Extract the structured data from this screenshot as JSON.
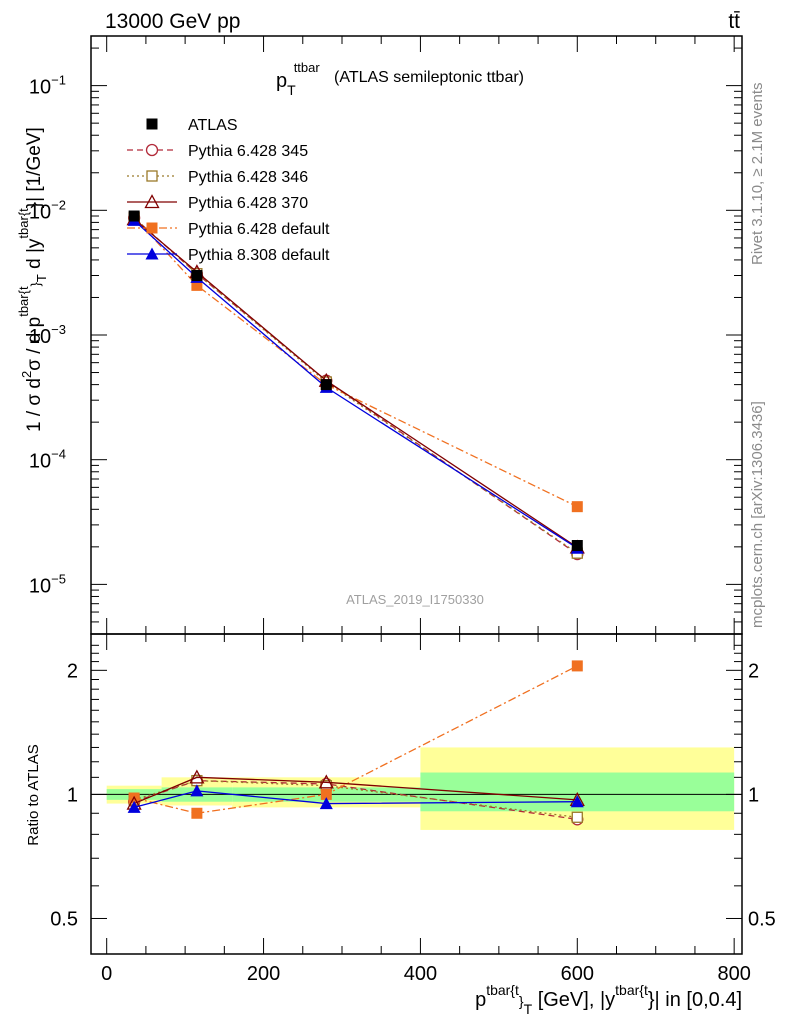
{
  "header": {
    "left": "13000 GeV pp",
    "right": "tt̄"
  },
  "side_labels": {
    "rivet": "Rivet 3.1.10, ≥ 2.1M events",
    "mcplots": "mcplots.cern.ch [arXiv:1306.3436]"
  },
  "chart_data": [
    {
      "type": "line",
      "panel": "main",
      "title_main": "p",
      "title_sub": "T",
      "title_sup": "ttbar",
      "title_rest": "(ATLAS semileptonic ttbar)",
      "watermark": "ATLAS_2019_I1750330",
      "ylabel": "1 / σ d²σ / d p^{tbar{t}}_T d |y^{tbar{t}}| [1/GeV]",
      "yscale": "log",
      "ylim": [
        4e-06,
        0.25
      ],
      "xlim": [
        -20,
        810
      ],
      "y_ticks": [
        {
          "value": 0.1,
          "base": "10",
          "exp": "−1"
        },
        {
          "value": 0.01,
          "base": "10",
          "exp": "−2"
        },
        {
          "value": 0.001,
          "base": "10",
          "exp": "−3"
        },
        {
          "value": 0.0001,
          "base": "10",
          "exp": "−4"
        },
        {
          "value": 1e-05,
          "base": "10",
          "exp": "−5"
        }
      ],
      "x": [
        35,
        115,
        280,
        600
      ],
      "series": [
        {
          "name": "ATLAS",
          "color": "#000000",
          "marker": "square-filled",
          "dash": "none",
          "values": [
            0.009,
            0.003,
            0.0004,
            2.05e-05
          ]
        },
        {
          "name": "Pythia 6.428 345",
          "color": "#b22a3a",
          "marker": "circle-open",
          "dash": "dashed",
          "values": [
            0.0087,
            0.0031,
            0.00043,
            1.75e-05
          ]
        },
        {
          "name": "Pythia 6.428 346",
          "color": "#9a7a2a",
          "marker": "square-open",
          "dash": "dotted",
          "values": [
            0.0087,
            0.0031,
            0.00042,
            1.78e-05
          ]
        },
        {
          "name": "Pythia 6.428 370",
          "color": "#800000",
          "marker": "triangle-open",
          "dash": "solid",
          "values": [
            0.0085,
            0.0032,
            0.00043,
            1.98e-05
          ]
        },
        {
          "name": "Pythia 6.428 default",
          "color": "#f07020",
          "marker": "square-filled",
          "dash": "dashdot",
          "values": [
            0.0088,
            0.0025,
            0.0004,
            4.2e-05
          ]
        },
        {
          "name": "Pythia 8.308 default",
          "color": "#0000dd",
          "marker": "triangle-filled",
          "dash": "solid",
          "values": [
            0.0083,
            0.0029,
            0.00038,
            1.95e-05
          ]
        }
      ]
    },
    {
      "type": "line",
      "panel": "ratio",
      "ylabel": "Ratio to ATLAS",
      "xlabel": "p^{tbar{t}}_T [GeV], |y^{tbar{t}}| in [0,0.4]",
      "yscale": "log",
      "ylim": [
        0.41,
        2.45
      ],
      "xlim": [
        -20,
        810
      ],
      "y_ticks": [
        0.5,
        1,
        2
      ],
      "y_tick_labels": [
        "0.5",
        "1",
        "2"
      ],
      "x_ticks": [
        0,
        200,
        400,
        600,
        800
      ],
      "x_tick_labels": [
        "0",
        "200",
        "400",
        "600",
        "800"
      ],
      "bins": [
        [
          0,
          70
        ],
        [
          70,
          160
        ],
        [
          160,
          400
        ],
        [
          400,
          800
        ]
      ],
      "band_inner": [
        [
          0.97,
          1.03
        ],
        [
          0.96,
          1.04
        ],
        [
          0.96,
          1.04
        ],
        [
          0.91,
          1.13
        ]
      ],
      "band_outer": [
        [
          0.95,
          1.05
        ],
        [
          0.94,
          1.1
        ],
        [
          0.93,
          1.1
        ],
        [
          0.82,
          1.3
        ]
      ],
      "x": [
        35,
        115,
        280,
        600
      ],
      "series": [
        {
          "name": "Pythia 6.428 345",
          "values": [
            0.96,
            1.08,
            1.06,
            0.87
          ]
        },
        {
          "name": "Pythia 6.428 346",
          "values": [
            0.97,
            1.08,
            1.05,
            0.88
          ]
        },
        {
          "name": "Pythia 6.428 370",
          "values": [
            0.95,
            1.1,
            1.07,
            0.97
          ]
        },
        {
          "name": "Pythia 6.428 default",
          "values": [
            0.98,
            0.9,
            1.0,
            2.05
          ]
        },
        {
          "name": "Pythia 8.308 default",
          "values": [
            0.93,
            1.02,
            0.95,
            0.96
          ]
        }
      ]
    }
  ]
}
